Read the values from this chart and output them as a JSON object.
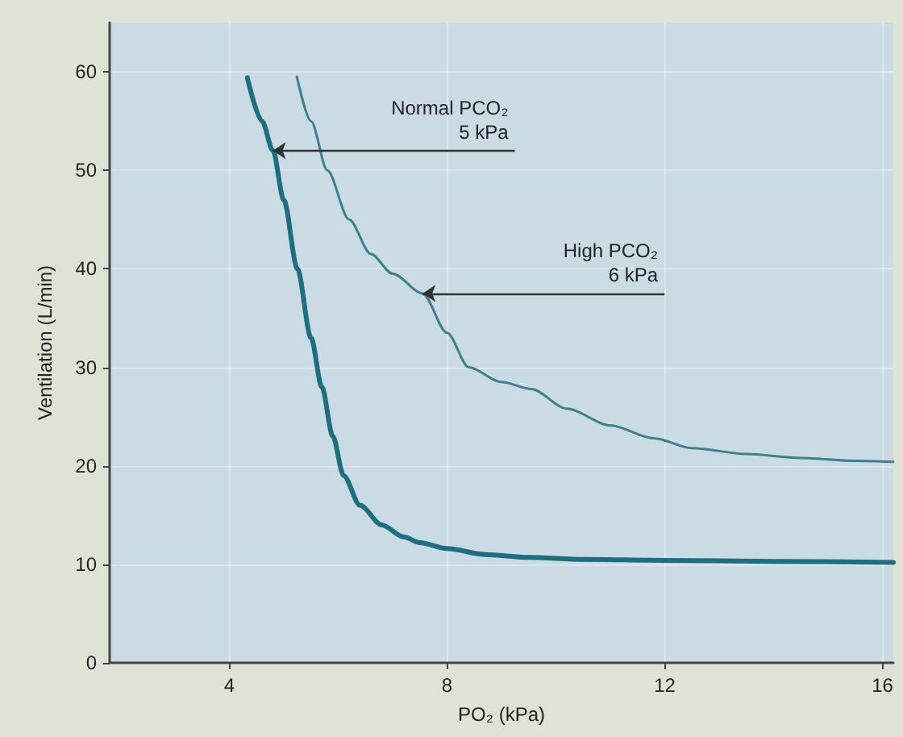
{
  "chart_data": {
    "type": "line",
    "xlabel": "PO₂ (kPa)",
    "ylabel": "Ventilation (L/min)",
    "xlim": [
      1.8,
      16.2
    ],
    "xticks": [
      4,
      8,
      12,
      16
    ],
    "ylim": [
      0,
      65
    ],
    "yticks": [
      0,
      10,
      20,
      30,
      40,
      50,
      60
    ],
    "grid": true,
    "marker": "none",
    "line_style": "solid",
    "series": [
      {
        "color": "#1d6f80",
        "x": [
          4.33,
          4.6,
          4.8,
          5.0,
          5.25,
          5.5,
          5.7,
          5.9,
          6.1,
          6.4,
          6.8,
          7.2,
          7.5,
          8.0,
          8.7,
          9.5,
          10.5,
          12,
          14,
          16.2
        ],
        "values": [
          59.4,
          55,
          52,
          47,
          40,
          33,
          28,
          23,
          19,
          16,
          14,
          12.8,
          12.2,
          11.6,
          11,
          10.7,
          10.5,
          10.4,
          10.3,
          10.2
        ]
      },
      {
        "color": "#3d7f8c",
        "x": [
          5.24,
          5.5,
          5.8,
          6.2,
          6.6,
          7.0,
          7.55,
          8.0,
          8.4,
          9.0,
          9.55,
          10.2,
          11.0,
          11.8,
          12.5,
          13.5,
          14.5,
          15.5,
          16.2
        ],
        "values": [
          59.5,
          55,
          50,
          45,
          41.5,
          39.5,
          37.5,
          33.5,
          30,
          28.5,
          27.8,
          25.8,
          24.1,
          22.8,
          21.8,
          21.2,
          20.8,
          20.5,
          20.4
        ]
      }
    ],
    "annotations": [
      {
        "text": "Normal PCO₂\n5 kPa",
        "x": 4.8,
        "y": 52
      },
      {
        "text": "High PCO₂\n6 kPa",
        "x": 7.55,
        "y": 37.5
      }
    ]
  }
}
